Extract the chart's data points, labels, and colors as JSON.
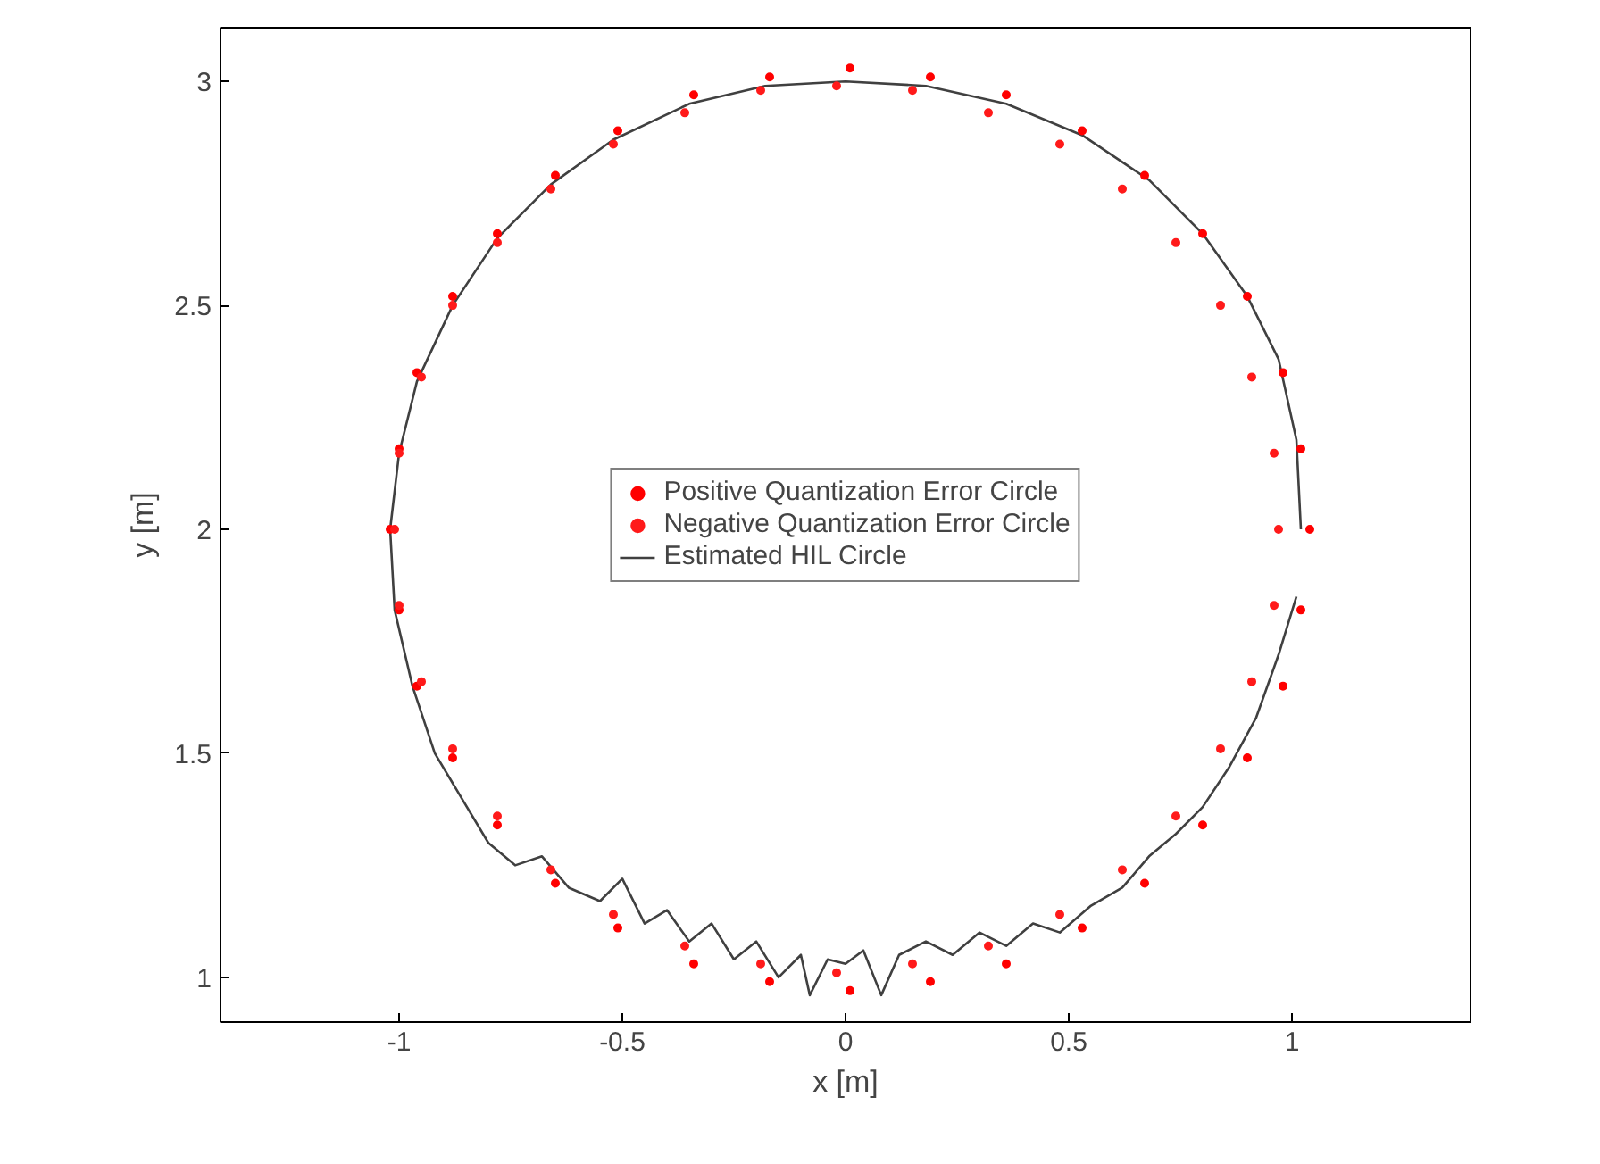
{
  "chart_data": {
    "type": "line",
    "xlabel": "x [m]",
    "ylabel": "y [m]",
    "xlim": [
      -1.4,
      1.4
    ],
    "ylim": [
      0.9,
      3.12
    ],
    "xticks": [
      -1,
      -0.5,
      0,
      0.5,
      1
    ],
    "yticks": [
      1,
      1.5,
      2,
      2.5,
      3
    ],
    "grid": false,
    "legend": "center",
    "series": [
      {
        "name": "Positive Quantization Error Circle",
        "type": "scatter",
        "marker": "circle",
        "color": "#ff0000",
        "x": [
          1.04,
          1.02,
          0.98,
          0.9,
          0.8,
          0.67,
          0.53,
          0.36,
          0.19,
          0.01,
          -0.17,
          -0.34,
          -0.51,
          -0.65,
          -0.78,
          -0.88,
          -0.96,
          -1.0,
          -1.02,
          -1.0,
          -0.96,
          -0.88,
          -0.78,
          -0.65,
          -0.51,
          -0.34,
          -0.17,
          0.01,
          0.19,
          0.36,
          0.53,
          0.67,
          0.8,
          0.9,
          0.98,
          1.02
        ],
        "values": [
          2.0,
          2.18,
          2.35,
          2.52,
          2.66,
          2.79,
          2.89,
          2.97,
          3.01,
          3.03,
          3.01,
          2.97,
          2.89,
          2.79,
          2.66,
          2.52,
          2.35,
          2.18,
          2.0,
          1.82,
          1.65,
          1.49,
          1.34,
          1.21,
          1.11,
          1.03,
          0.99,
          0.97,
          0.99,
          1.03,
          1.11,
          1.21,
          1.34,
          1.49,
          1.65,
          1.82
        ]
      },
      {
        "name": "Negative Quantization Error Circle",
        "type": "scatter",
        "marker": "circle",
        "color": "#ff1a1a",
        "x": [
          0.97,
          0.96,
          0.91,
          0.84,
          0.74,
          0.62,
          0.48,
          0.32,
          0.15,
          -0.02,
          -0.19,
          -0.36,
          -0.52,
          -0.66,
          -0.78,
          -0.88,
          -0.95,
          -1.0,
          -1.01,
          -1.0,
          -0.95,
          -0.88,
          -0.78,
          -0.66,
          -0.52,
          -0.36,
          -0.19,
          -0.02,
          0.15,
          0.32,
          0.48,
          0.62,
          0.74,
          0.84,
          0.91,
          0.96
        ],
        "values": [
          2.0,
          2.17,
          2.34,
          2.5,
          2.64,
          2.76,
          2.86,
          2.93,
          2.98,
          2.99,
          2.98,
          2.93,
          2.86,
          2.76,
          2.64,
          2.5,
          2.34,
          2.17,
          2.0,
          1.83,
          1.66,
          1.51,
          1.36,
          1.24,
          1.14,
          1.07,
          1.03,
          1.01,
          1.03,
          1.07,
          1.14,
          1.24,
          1.36,
          1.51,
          1.66,
          1.83
        ]
      },
      {
        "name": "Estimated HIL Circle",
        "marker": "none",
        "line_style": "solid",
        "color": "#404040",
        "x": [
          1.02,
          1.01,
          0.97,
          0.9,
          0.8,
          0.68,
          0.53,
          0.36,
          0.18,
          0.0,
          -0.18,
          -0.35,
          -0.52,
          -0.66,
          -0.78,
          -0.88,
          -0.96,
          -1.0,
          -1.02,
          -1.01,
          -0.97,
          -0.92,
          -0.86,
          -0.8,
          -0.74,
          -0.68,
          -0.62,
          -0.55,
          -0.5,
          -0.45,
          -0.4,
          -0.35,
          -0.3,
          -0.25,
          -0.2,
          -0.15,
          -0.1,
          -0.08,
          -0.04,
          0.0,
          0.04,
          0.08,
          0.12,
          0.18,
          0.24,
          0.3,
          0.36,
          0.42,
          0.48,
          0.55,
          0.62,
          0.68,
          0.74,
          0.8,
          0.86,
          0.92,
          0.97,
          1.01
        ],
        "values": [
          2.0,
          2.2,
          2.38,
          2.52,
          2.66,
          2.78,
          2.88,
          2.95,
          2.99,
          3.0,
          2.99,
          2.95,
          2.87,
          2.77,
          2.65,
          2.5,
          2.33,
          2.17,
          2.0,
          1.82,
          1.65,
          1.5,
          1.4,
          1.3,
          1.25,
          1.27,
          1.2,
          1.17,
          1.22,
          1.12,
          1.15,
          1.08,
          1.12,
          1.04,
          1.08,
          1.0,
          1.05,
          0.96,
          1.04,
          1.03,
          1.06,
          0.96,
          1.05,
          1.08,
          1.05,
          1.1,
          1.07,
          1.12,
          1.1,
          1.16,
          1.2,
          1.27,
          1.32,
          1.38,
          1.47,
          1.58,
          1.72,
          1.85
        ]
      }
    ]
  }
}
